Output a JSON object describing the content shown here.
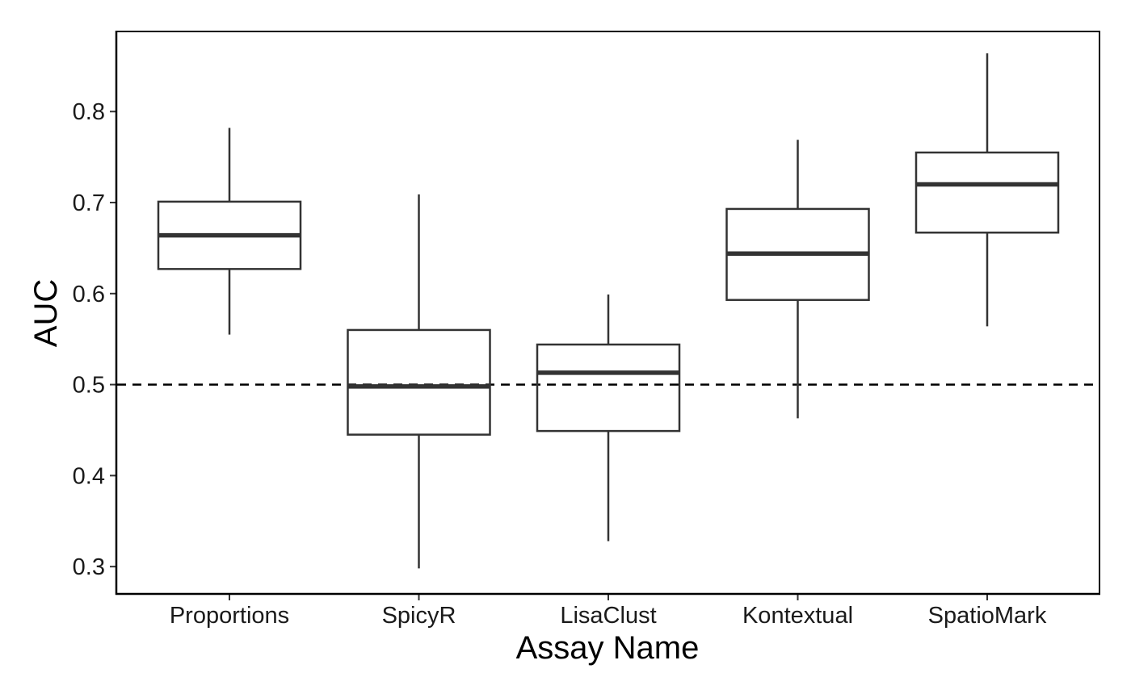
{
  "chart_data": {
    "type": "box",
    "xlabel": "Assay Name",
    "ylabel": "AUC",
    "ylim": [
      0.27,
      0.888
    ],
    "yticks": [
      0.3,
      0.4,
      0.5,
      0.6,
      0.7,
      0.8
    ],
    "ytick_labels": [
      "0.3",
      "0.4",
      "0.5",
      "0.6",
      "0.7",
      "0.8"
    ],
    "categories": [
      "Proportions",
      "SpicyR",
      "LisaClust",
      "Kontextual",
      "SpatioMark"
    ],
    "boxes": [
      {
        "name": "Proportions",
        "min": 0.555,
        "q1": 0.627,
        "median": 0.664,
        "q3": 0.701,
        "max": 0.782
      },
      {
        "name": "SpicyR",
        "min": 0.298,
        "q1": 0.445,
        "median": 0.498,
        "q3": 0.56,
        "max": 0.709
      },
      {
        "name": "LisaClust",
        "min": 0.328,
        "q1": 0.449,
        "median": 0.513,
        "q3": 0.544,
        "max": 0.599
      },
      {
        "name": "Kontextual",
        "min": 0.463,
        "q1": 0.593,
        "median": 0.644,
        "q3": 0.693,
        "max": 0.769
      },
      {
        "name": "SpatioMark",
        "min": 0.564,
        "q1": 0.667,
        "median": 0.72,
        "q3": 0.755,
        "max": 0.864
      }
    ],
    "reference_line": {
      "y": 0.5,
      "style": "dashed"
    },
    "grid": false,
    "legend": "none",
    "colors": {
      "box_stroke": "#333333",
      "box_fill": "#ffffff",
      "axis": "#000000",
      "reference_line": "#000000"
    }
  }
}
